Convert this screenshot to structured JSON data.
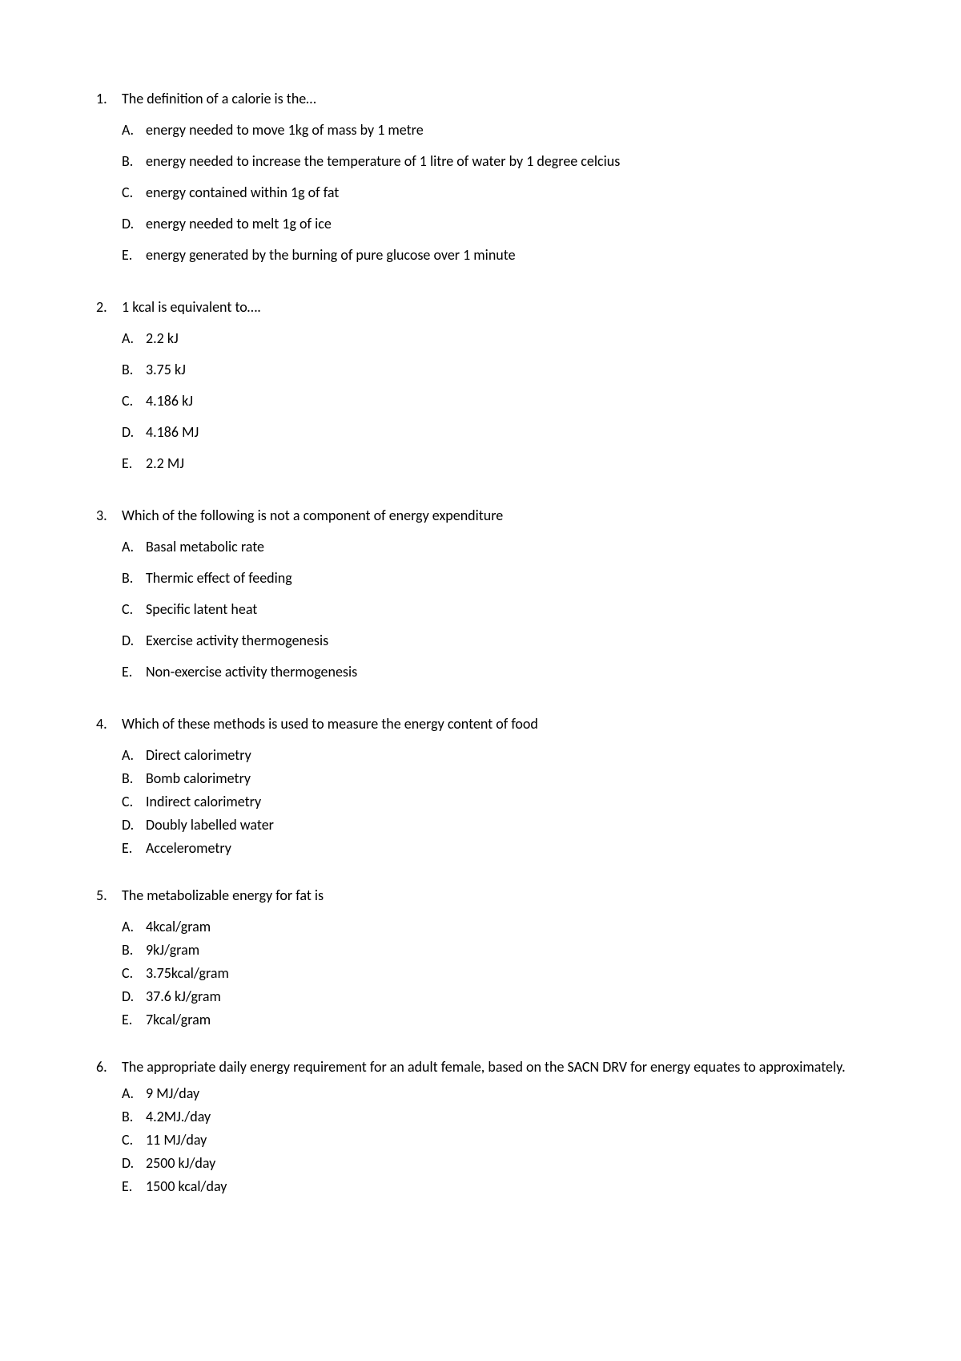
{
  "questions": [
    {
      "num": "1.",
      "text": "The definition of a calorie is the…",
      "spacing": "spaced",
      "options": [
        {
          "letter": "A.",
          "text": "energy needed to move 1kg of mass by 1 metre"
        },
        {
          "letter": "B.",
          "text": "energy needed to increase the temperature of 1 litre of water by 1 degree celcius"
        },
        {
          "letter": "C.",
          "text": "energy contained within 1g of fat"
        },
        {
          "letter": "D.",
          "text": "energy needed to melt 1g of ice"
        },
        {
          "letter": "E.",
          "text": "energy generated by the burning of pure glucose over 1 minute"
        }
      ]
    },
    {
      "num": "2.",
      "text": "1 kcal is equivalent to….",
      "spacing": "spaced",
      "options": [
        {
          "letter": "A.",
          "text": "2.2 kJ"
        },
        {
          "letter": "B.",
          "text": "3.75 kJ"
        },
        {
          "letter": "C.",
          "text": "4.186 kJ"
        },
        {
          "letter": "D.",
          "text": "4.186 MJ"
        },
        {
          "letter": "E.",
          "text": "2.2 MJ"
        }
      ]
    },
    {
      "num": "3.",
      "text": "Which of the following is not a component of energy expenditure",
      "spacing": "spaced",
      "options": [
        {
          "letter": "A.",
          "text": "Basal metabolic rate"
        },
        {
          "letter": "B.",
          "text": "Thermic effect of feeding"
        },
        {
          "letter": "C.",
          "text": "Specific latent heat"
        },
        {
          "letter": "D.",
          "text": "Exercise activity thermogenesis"
        },
        {
          "letter": "E.",
          "text": "Non-exercise activity thermogenesis"
        }
      ]
    },
    {
      "num": "4.",
      "text": "Which of these methods is used to measure the energy content of food",
      "spacing": "compact",
      "options": [
        {
          "letter": "A.",
          "text": "Direct calorimetry"
        },
        {
          "letter": "B.",
          "text": "Bomb calorimetry"
        },
        {
          "letter": "C.",
          "text": "Indirect calorimetry"
        },
        {
          "letter": "D.",
          "text": "Doubly labelled water"
        },
        {
          "letter": "E.",
          "text": "Accelerometry"
        }
      ]
    },
    {
      "num": "5.",
      "text": "The metabolizable energy for fat is",
      "spacing": "compact",
      "options": [
        {
          "letter": "A.",
          "text": "4kcal/gram"
        },
        {
          "letter": "B.",
          "text": "9kJ/gram"
        },
        {
          "letter": "C.",
          "text": "3.75kcal/gram"
        },
        {
          "letter": "D.",
          "text": "37.6 kJ/gram"
        },
        {
          "letter": "E.",
          "text": "7kcal/gram"
        }
      ]
    },
    {
      "num": "6.",
      "text": "The appropriate daily energy requirement for an adult female, based on the SACN DRV for energy equates to approximately.",
      "spacing": "compact",
      "options": [
        {
          "letter": "A.",
          "text": "9 MJ/day"
        },
        {
          "letter": "B.",
          "text": "4.2MJ./day"
        },
        {
          "letter": "C.",
          "text": "11 MJ/day"
        },
        {
          "letter": "D.",
          "text": "2500 kJ/day"
        },
        {
          "letter": "E.",
          "text": "1500 kcal/day"
        }
      ]
    }
  ]
}
